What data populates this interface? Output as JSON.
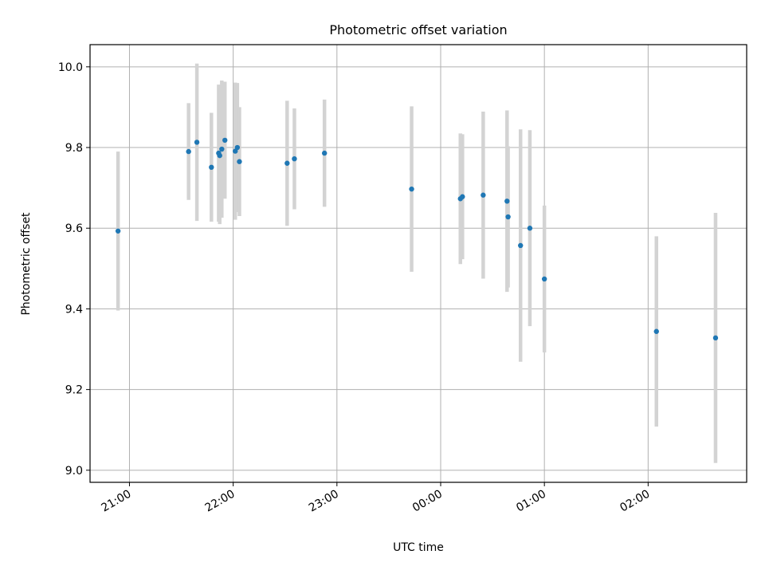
{
  "chart_data": {
    "type": "scatter",
    "title": "Photometric offset variation",
    "xlabel": "UTC time",
    "ylabel": "Photometric offset",
    "x_axis_type": "time",
    "x_ticks": [
      "21:00",
      "22:00",
      "23:00",
      "00:00",
      "01:00",
      "02:00"
    ],
    "x_tick_hours": [
      0,
      1,
      2,
      3,
      4,
      5
    ],
    "xlim_hours": [
      -0.38,
      5.95
    ],
    "y_ticks": [
      "9.0",
      "9.2",
      "9.4",
      "9.6",
      "9.8",
      "10.0"
    ],
    "y_tick_values": [
      9.0,
      9.2,
      9.4,
      9.6,
      9.8,
      10.0
    ],
    "ylim": [
      8.97,
      10.055
    ],
    "grid": true,
    "colors": {
      "point": "#1f77b4",
      "errorbar": "#d3d3d3",
      "grid": "#b0b0b0"
    },
    "points": [
      {
        "time": "20:53",
        "t": -0.11,
        "y": 9.593,
        "err": 0.197
      },
      {
        "time": "21:34",
        "t": 0.57,
        "y": 9.79,
        "err": 0.12
      },
      {
        "time": "21:38",
        "t": 0.65,
        "y": 9.813,
        "err": 0.195
      },
      {
        "time": "21:47",
        "t": 0.79,
        "y": 9.751,
        "err": 0.135
      },
      {
        "time": "21:51",
        "t": 0.86,
        "y": 9.786,
        "err": 0.17
      },
      {
        "time": "21:52",
        "t": 0.87,
        "y": 9.78,
        "err": 0.17
      },
      {
        "time": "21:53",
        "t": 0.89,
        "y": 9.796,
        "err": 0.17
      },
      {
        "time": "21:55",
        "t": 0.92,
        "y": 9.818,
        "err": 0.145
      },
      {
        "time": "22:01",
        "t": 1.02,
        "y": 9.791,
        "err": 0.17
      },
      {
        "time": "22:02",
        "t": 1.04,
        "y": 9.8,
        "err": 0.16
      },
      {
        "time": "22:04",
        "t": 1.06,
        "y": 9.765,
        "err": 0.135
      },
      {
        "time": "22:31",
        "t": 1.52,
        "y": 9.761,
        "err": 0.155
      },
      {
        "time": "22:35",
        "t": 1.59,
        "y": 9.772,
        "err": 0.125
      },
      {
        "time": "22:52",
        "t": 1.88,
        "y": 9.786,
        "err": 0.133
      },
      {
        "time": "23:43",
        "t": 2.72,
        "y": 9.697,
        "err": 0.205
      },
      {
        "time": "00:11",
        "t": 3.19,
        "y": 9.673,
        "err": 0.162
      },
      {
        "time": "00:12",
        "t": 3.21,
        "y": 9.678,
        "err": 0.155
      },
      {
        "time": "00:24",
        "t": 3.41,
        "y": 9.682,
        "err": 0.207
      },
      {
        "time": "00:38",
        "t": 3.64,
        "y": 9.667,
        "err": 0.225
      },
      {
        "time": "00:38",
        "t": 3.65,
        "y": 9.628,
        "err": 0.175
      },
      {
        "time": "00:46",
        "t": 3.77,
        "y": 9.557,
        "err": 0.288
      },
      {
        "time": "00:51",
        "t": 3.86,
        "y": 9.6,
        "err": 0.243
      },
      {
        "time": "00:59",
        "t": 4.0,
        "y": 9.474,
        "err": 0.182
      },
      {
        "time": "02:04",
        "t": 5.08,
        "y": 9.344,
        "err": 0.236
      },
      {
        "time": "02:39",
        "t": 5.65,
        "y": 9.328,
        "err": 0.31
      }
    ]
  }
}
